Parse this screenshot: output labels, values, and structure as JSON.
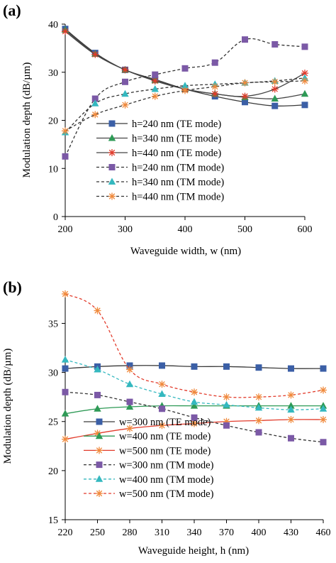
{
  "colors": {
    "series1": "#3b5fa6",
    "series2": "#2e9a56",
    "series3": "#e23b2b",
    "series4": "#7b59a6",
    "series5": "#34b8bf",
    "series6": "#f08a3c",
    "line_te_b": "#3a3a3a",
    "line_tm": "#333333",
    "axis": "#000000"
  },
  "chart_data": [
    {
      "type": "line",
      "panel_label": "(a)",
      "xlabel": "Waveguide width, w (nm)",
      "ylabel": "Modulation depth (dB/µm)",
      "xlim": [
        200,
        600
      ],
      "ylim": [
        0,
        40
      ],
      "xticks": [
        200,
        300,
        400,
        500,
        600
      ],
      "yticks": [
        0,
        10,
        20,
        30,
        40
      ],
      "grid": false,
      "legend_position": "bottom-center",
      "x": [
        200,
        250,
        300,
        350,
        400,
        450,
        500,
        550,
        600
      ],
      "series": [
        {
          "name": "h=240 nm (TE mode)",
          "marker": "square",
          "dash": false,
          "values": [
            39.0,
            34.0,
            30.5,
            28.5,
            26.5,
            25.0,
            23.8,
            23.0,
            23.2
          ]
        },
        {
          "name": "h=340 nm (TE mode)",
          "marker": "triangle",
          "dash": false,
          "values": [
            38.8,
            33.8,
            30.5,
            28.3,
            26.5,
            25.5,
            24.8,
            24.5,
            25.5
          ]
        },
        {
          "name": "h=440 nm (TE mode)",
          "marker": "star",
          "dash": false,
          "values": [
            38.5,
            33.7,
            30.5,
            28.2,
            26.5,
            25.5,
            25.0,
            26.5,
            29.8
          ]
        },
        {
          "name": "h=240 nm (TM mode)",
          "marker": "square",
          "dash": true,
          "values": [
            12.5,
            24.5,
            28.0,
            29.5,
            30.8,
            32.0,
            36.8,
            35.8,
            35.3
          ]
        },
        {
          "name": "h=340 nm (TM mode)",
          "marker": "triangle",
          "dash": true,
          "values": [
            17.5,
            23.5,
            25.5,
            26.5,
            27.2,
            27.5,
            27.8,
            28.2,
            28.8
          ]
        },
        {
          "name": "h=440 nm (TM mode)",
          "marker": "star",
          "dash": true,
          "values": [
            17.8,
            21.2,
            23.2,
            25.0,
            26.2,
            27.0,
            27.8,
            28.0,
            28.2
          ]
        }
      ]
    },
    {
      "type": "line",
      "panel_label": "(b)",
      "xlabel": "Waveguide height, h (nm)",
      "ylabel": "Modulation depth (dB/µm)",
      "xlim": [
        220,
        460
      ],
      "ylim": [
        15,
        38
      ],
      "xticks": [
        220,
        250,
        280,
        310,
        340,
        370,
        400,
        430,
        460
      ],
      "yticks": [
        15,
        20,
        25,
        30,
        35
      ],
      "grid": false,
      "legend_position": "bottom-center",
      "x": [
        220,
        250,
        280,
        310,
        340,
        370,
        400,
        430,
        460
      ],
      "series": [
        {
          "name": "w=300 nm (TE mode)",
          "marker": "square",
          "dash": false,
          "values": [
            30.4,
            30.6,
            30.7,
            30.7,
            30.6,
            30.6,
            30.5,
            30.4,
            30.4
          ]
        },
        {
          "name": "w=400 nm (TE mode)",
          "marker": "triangle",
          "dash": false,
          "values": [
            25.8,
            26.3,
            26.5,
            26.6,
            26.6,
            26.6,
            26.6,
            26.6,
            26.6
          ]
        },
        {
          "name": "w=500 nm (TE mode)",
          "marker": "star",
          "dash": false,
          "values": [
            23.2,
            23.8,
            24.3,
            24.6,
            24.8,
            25.0,
            25.1,
            25.2,
            25.2
          ]
        },
        {
          "name": "w=300 nm (TM mode)",
          "marker": "square",
          "dash": true,
          "values": [
            28.0,
            27.7,
            27.0,
            26.3,
            25.4,
            24.6,
            23.9,
            23.3,
            22.9
          ]
        },
        {
          "name": "w=400 nm (TM mode)",
          "marker": "triangle",
          "dash": true,
          "values": [
            31.3,
            30.3,
            28.8,
            27.8,
            27.0,
            26.7,
            26.4,
            26.2,
            26.3
          ]
        },
        {
          "name": "w=500 nm (TM mode)",
          "marker": "star",
          "dash": true,
          "values": [
            38.0,
            36.3,
            30.3,
            28.8,
            28.0,
            27.5,
            27.5,
            27.7,
            28.2
          ]
        }
      ]
    }
  ]
}
